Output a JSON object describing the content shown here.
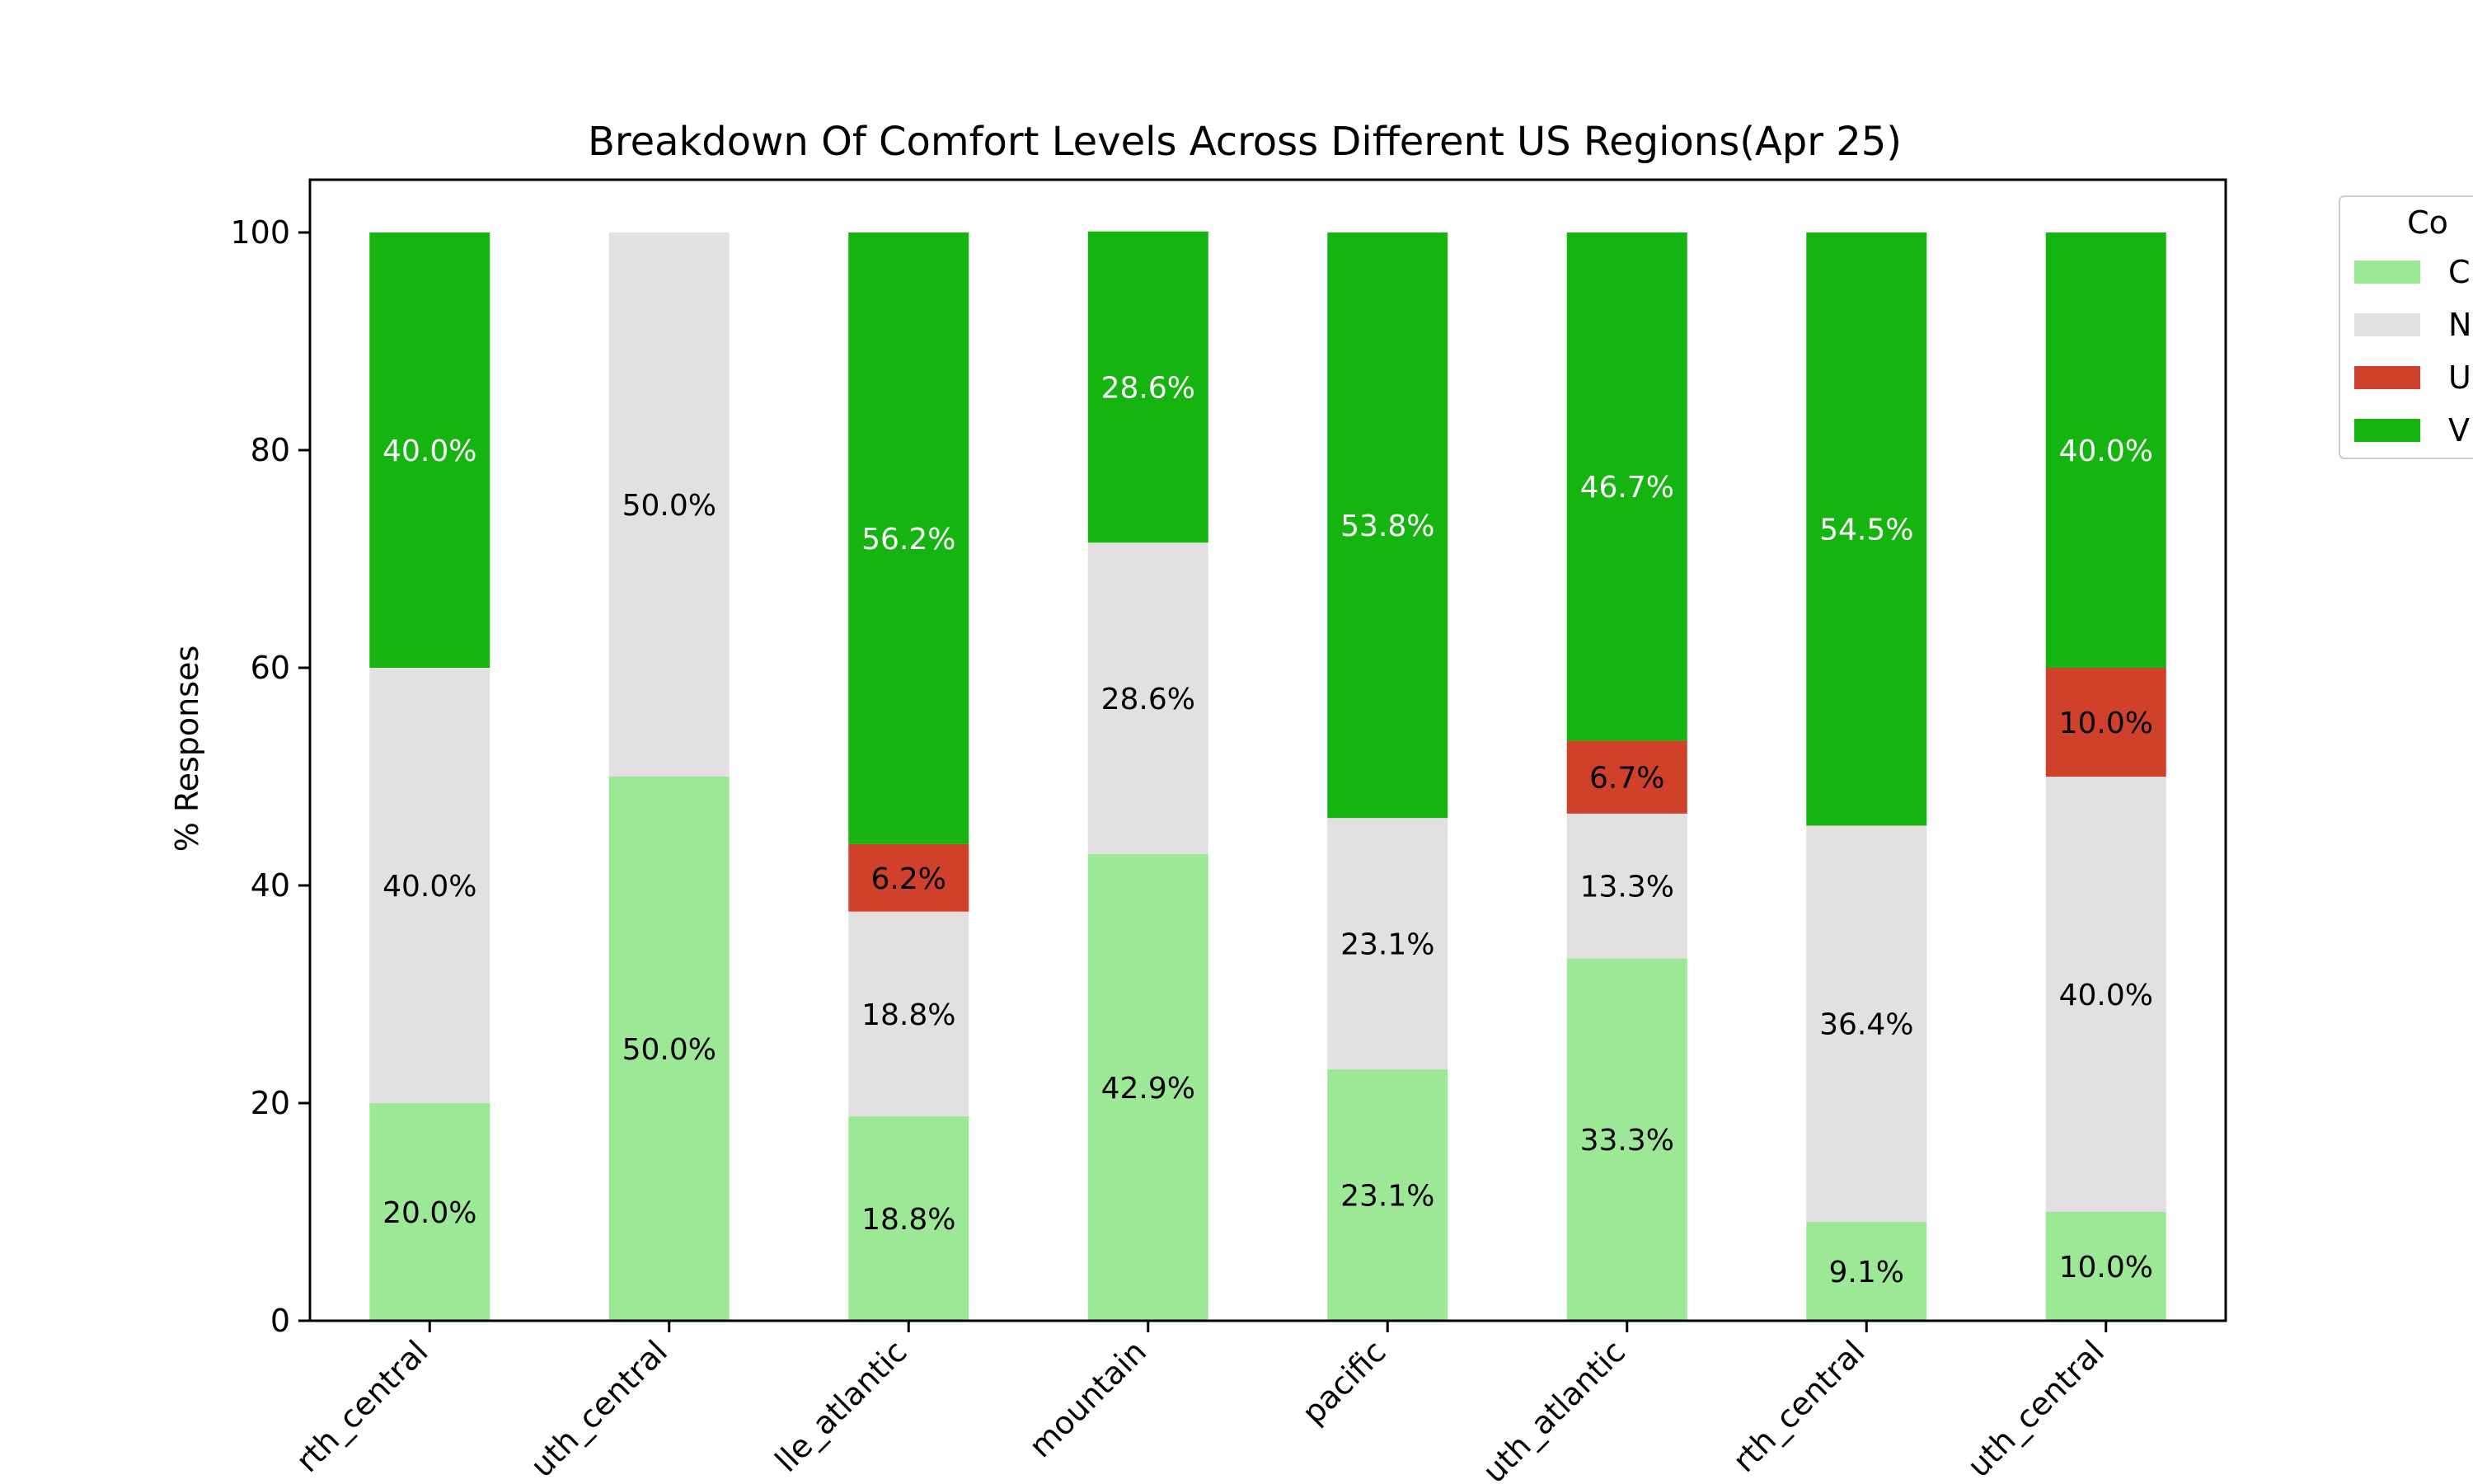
{
  "chart_data": {
    "type": "bar",
    "stacked": true,
    "title": "Breakdown Of Comfort Levels Across Different US Regions(Apr 25)",
    "xlabel": "",
    "ylabel": "% Responses",
    "ylim": [
      0,
      105
    ],
    "yticks": [
      "0",
      "20",
      "40",
      "60",
      "80",
      "100"
    ],
    "grid": false,
    "categories": [
      "rth_central",
      "uth_central",
      "lle_atlantic",
      "mountain",
      "pacific",
      "uth_atlantic",
      "rth_central",
      "uth_central"
    ],
    "series": [
      {
        "name": "C",
        "color": "#9de897",
        "label_color": "#000000",
        "values": [
          20.0,
          50.0,
          18.8,
          42.9,
          23.1,
          33.3,
          9.1,
          10.0
        ],
        "labels": [
          "20.0%",
          "50.0%",
          "18.8%",
          "42.9%",
          "23.1%",
          "33.3%",
          "9.1%",
          "10.0%"
        ]
      },
      {
        "name": "N",
        "color": "#e2e0e0",
        "label_color": "#000000",
        "values": [
          40.0,
          50.0,
          18.8,
          28.6,
          23.1,
          13.3,
          36.4,
          40.0
        ],
        "labels": [
          "40.0%",
          "50.0%",
          "18.8%",
          "28.6%",
          "23.1%",
          "13.3%",
          "36.4%",
          "40.0%"
        ]
      },
      {
        "name": "U",
        "color": "#d0412b",
        "label_color": "#000000",
        "values": [
          0,
          0,
          6.2,
          0,
          0,
          6.7,
          0,
          10.0
        ],
        "labels": [
          "",
          "",
          "6.2%",
          "",
          "",
          "6.7%",
          "",
          "10.0%"
        ]
      },
      {
        "name": "V",
        "color": "#16b410",
        "label_color": "#ffffff",
        "values": [
          40.0,
          0,
          56.2,
          28.6,
          53.8,
          46.7,
          54.5,
          40.0
        ],
        "labels": [
          "40.0%",
          "",
          "56.2%",
          "28.6%",
          "53.8%",
          "46.7%",
          "54.5%",
          "40.0%"
        ]
      }
    ],
    "legend": {
      "title": "Co",
      "placement": "outside-top-right"
    }
  }
}
